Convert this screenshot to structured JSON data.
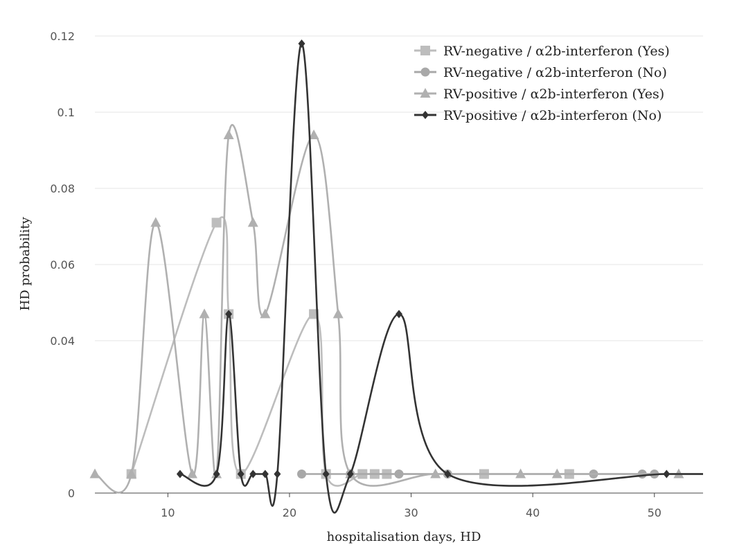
{
  "chart_data": {
    "type": "line",
    "title": "",
    "xlabel": "hospitalisation days, HD",
    "ylabel": "HD probability",
    "xlim": [
      4,
      54
    ],
    "ylim": [
      0,
      0.12
    ],
    "xticks": [
      10,
      20,
      30,
      40,
      50
    ],
    "yticks": [
      0,
      0.04,
      0.06,
      0.08,
      0.1,
      0.12
    ],
    "ytick_labels": [
      "0",
      "0.04",
      "0.06",
      "0.08",
      "0.1",
      "0.12"
    ],
    "grid": "horizontal",
    "legend_position": "top-right",
    "baseline_value": 0.005,
    "series": [
      {
        "name": "RV-negative / α2b-interferon (Yes)",
        "marker": "square",
        "color": "#bdbdbd",
        "x": [
          7,
          14,
          15,
          16,
          22,
          23,
          26,
          27,
          28,
          36,
          43,
          54
        ],
        "y": [
          0.005,
          0.071,
          0.047,
          0.005,
          0.047,
          0.005,
          0.005,
          0.005,
          0.005,
          0.005,
          0.005,
          0.005
        ]
      },
      {
        "name": "RV-negative / α2b-interferon (No)",
        "marker": "circle",
        "color": "#a8a8a8",
        "x": [
          21,
          25,
          29,
          33,
          45,
          49,
          50,
          54
        ],
        "y": [
          0.005,
          0.005,
          0.005,
          0.005,
          0.005,
          0.005,
          0.005,
          0.005
        ]
      },
      {
        "name": "RV-positive / α2b-interferon (Yes)",
        "marker": "triangle",
        "color": "#b0b0b0",
        "x": [
          4,
          7,
          9,
          12,
          13,
          14,
          15,
          17,
          18,
          22,
          24,
          25,
          32,
          39,
          42,
          52,
          54
        ],
        "y": [
          0.005,
          0.005,
          0.071,
          0.005,
          0.047,
          0.005,
          0.094,
          0.071,
          0.047,
          0.094,
          0.047,
          0.005,
          0.005,
          0.005,
          0.005,
          0.005,
          0.005
        ]
      },
      {
        "name": "RV-positive / α2b-interferon (No)",
        "marker": "diamond",
        "color": "#333333",
        "x": [
          11,
          14,
          15,
          16,
          17,
          18,
          19,
          21,
          23,
          25,
          29,
          33,
          51,
          54
        ],
        "y": [
          0.005,
          0.005,
          0.047,
          0.005,
          0.005,
          0.005,
          0.005,
          0.118,
          0.005,
          0.005,
          0.047,
          0.005,
          0.005,
          0.005
        ]
      }
    ]
  }
}
